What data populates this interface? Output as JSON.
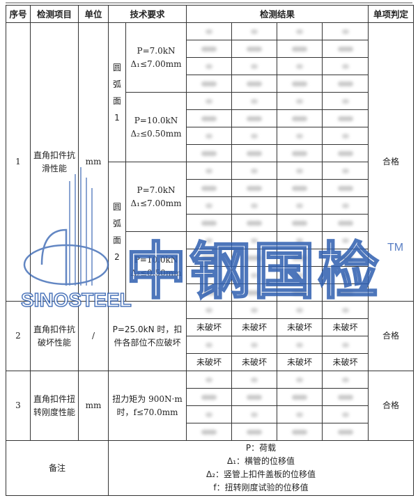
{
  "headers": [
    "序号",
    "检测项目",
    "单位",
    "技术要求",
    "检测结果",
    "单项判定"
  ],
  "row1": {
    "no": "1",
    "item": "直角扣件抗滑性能",
    "unit": "mm",
    "face1": "圆弧面1",
    "face2": "圆弧面2",
    "req_a_line1": "P=7.0kN",
    "req_a_line2": "Δ₁≤7.00mm",
    "req_b_line1": "P=10.0kN",
    "req_b_line2": "Δ₂≤0.50mm",
    "verdict": "合格"
  },
  "row2": {
    "no": "2",
    "item": "直角扣件抗破坏性能",
    "unit": "/",
    "req": "P=25.0kN 时，扣件各部位不应破坏",
    "result": "未破坏",
    "verdict": "合格"
  },
  "row3": {
    "no": "3",
    "item": "直角扣件扭转刚度性能",
    "unit": "mm",
    "req": "扭力矩为 900N·m 时，f≤70.0mm",
    "verdict": "合格"
  },
  "remarks": {
    "label": "备注",
    "lines": [
      "P：荷载",
      "Δ₁：横管的位移值",
      "Δ₂：竖管上扣件盖板的位移值",
      "f：扭转刚度试验的位移值"
    ]
  },
  "watermark": {
    "brand": "SINOSTEEL",
    "cn": "中钢国检",
    "tm": "TM",
    "color": "#2f5fb0"
  }
}
